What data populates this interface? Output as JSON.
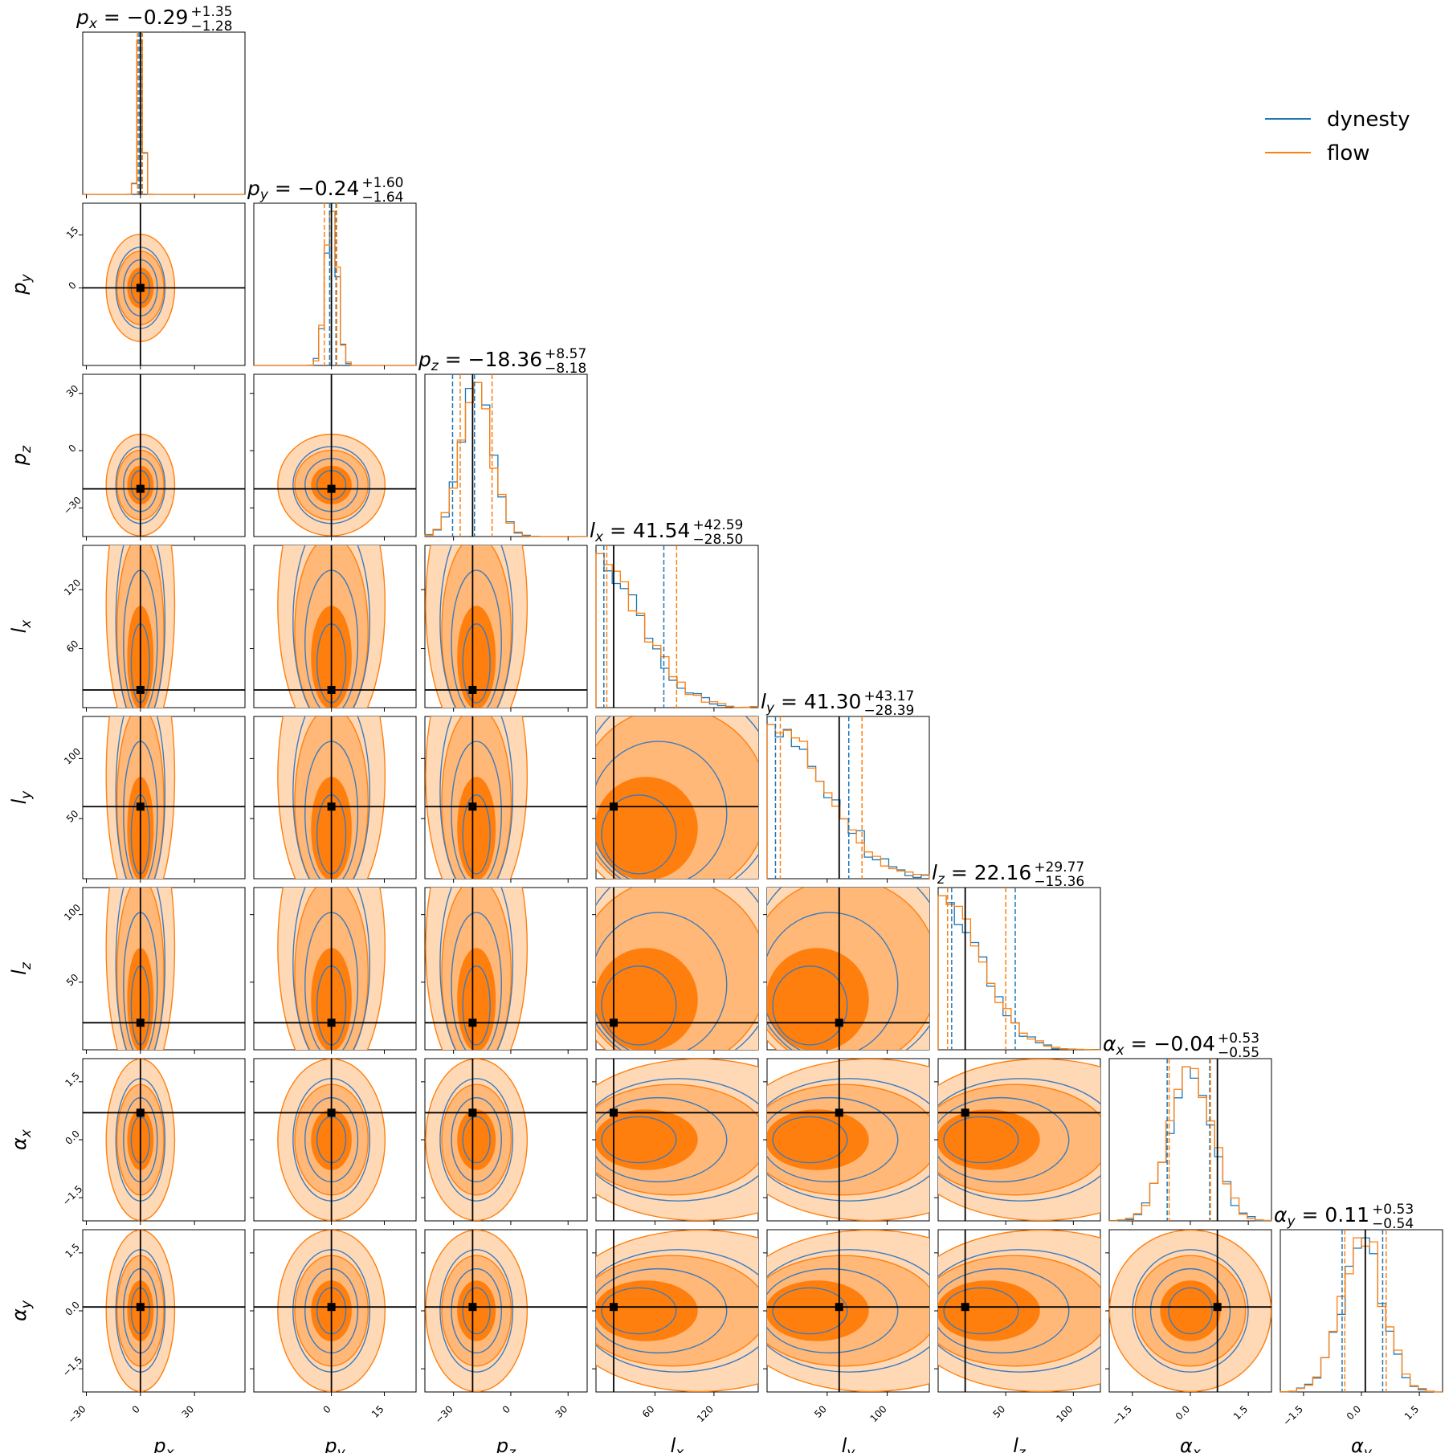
{
  "chart_data": {
    "type": "corner",
    "params": [
      {
        "name": "p",
        "sub": "x",
        "range": [
          -32,
          58
        ],
        "ticks": [
          -30,
          0,
          30
        ],
        "truth": 0,
        "quantiles": {
          "flow": [
            -1.6,
            1.1
          ],
          "dynesty": [
            -0.8,
            0.9
          ]
        },
        "title": {
          "median": "−0.29",
          "plus": "+1.35",
          "minus": "−1.28"
        }
      },
      {
        "name": "p",
        "sub": "y",
        "range": [
          -22,
          24
        ],
        "ticks": [
          0,
          15
        ],
        "truth": 0,
        "quantiles": {
          "flow": [
            -2.0,
            1.5
          ],
          "dynesty": [
            -0.5,
            1.3
          ]
        },
        "title": {
          "median": "−0.24",
          "plus": "+1.60",
          "minus": "−1.64"
        }
      },
      {
        "name": "p",
        "sub": "z",
        "range": [
          -45,
          40
        ],
        "ticks": [
          -30,
          0,
          30
        ],
        "truth": -20,
        "quantiles": {
          "flow": [
            -26.5,
            -9.8
          ],
          "dynesty": [
            -30.5,
            -19
          ]
        },
        "title": {
          "median": "−18.36",
          "plus": "+8.57",
          "minus": "−8.18"
        }
      },
      {
        "name": "l",
        "sub": "x",
        "range": [
          0,
          165
        ],
        "ticks": [
          60,
          120
        ],
        "truth": 18,
        "quantiles": {
          "flow": [
            11,
            82
          ],
          "dynesty": [
            8,
            69
          ]
        },
        "title": {
          "median": "41.54",
          "plus": "+42.59",
          "minus": "−28.50"
        }
      },
      {
        "name": "l",
        "sub": "y",
        "range": [
          0,
          135
        ],
        "ticks": [
          50,
          100
        ],
        "truth": 60,
        "quantiles": {
          "flow": [
            11,
            79
          ],
          "dynesty": [
            7,
            68
          ]
        },
        "title": {
          "median": "41.30",
          "plus": "+43.17",
          "minus": "−28.39"
        }
      },
      {
        "name": "l",
        "sub": "z",
        "range": [
          0,
          120
        ],
        "ticks": [
          50,
          100
        ],
        "truth": 20,
        "quantiles": {
          "flow": [
            7,
            50
          ],
          "dynesty": [
            10,
            57
          ]
        },
        "title": {
          "median": "22.16",
          "plus": "+29.77",
          "minus": "−15.36"
        }
      },
      {
        "name": "α",
        "sub": "x",
        "range": [
          -2.1,
          2.1
        ],
        "ticks": [
          -1.5,
          0.0,
          1.5
        ],
        "truth": 0.7,
        "quantiles": {
          "flow": [
            -0.55,
            0.52
          ],
          "dynesty": [
            -0.6,
            0.5
          ]
        },
        "title": {
          "median": "−0.04",
          "plus": "+0.53",
          "minus": "−0.55"
        }
      },
      {
        "name": "α",
        "sub": "y",
        "range": [
          -2.1,
          2.1
        ],
        "ticks": [
          -1.5,
          0.0,
          1.5
        ],
        "truth": 0.1,
        "quantiles": {
          "flow": [
            -0.43,
            0.64
          ],
          "dynesty": [
            -0.5,
            0.55
          ]
        },
        "title": {
          "median": "0.11",
          "plus": "+0.53",
          "minus": "−0.54"
        }
      }
    ],
    "tick_labels": {
      "p_x": [
        "−30",
        "0",
        "30"
      ],
      "p_y": [
        "0",
        "15"
      ],
      "p_z": [
        "−30",
        "0",
        "30"
      ],
      "l_x": [
        "60",
        "120"
      ],
      "l_y": [
        "50",
        "100"
      ],
      "l_z": [
        "50",
        "100"
      ],
      "alpha_x": [
        "−1.5",
        "0.0",
        "1.5"
      ],
      "alpha_y": [
        "−1.5",
        "0.0",
        "1.5"
      ]
    },
    "legend": [
      {
        "label": "dynesty",
        "color": "#1f77b4"
      },
      {
        "label": "flow",
        "color": "#ff7f0e"
      }
    ],
    "legend_position": "top-right",
    "grid": false
  }
}
